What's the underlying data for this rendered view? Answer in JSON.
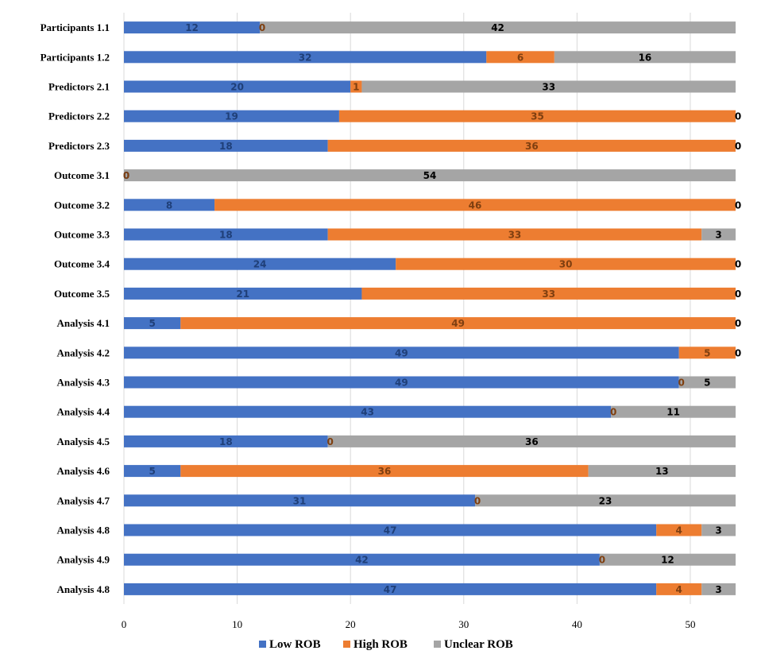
{
  "chart_data": {
    "type": "bar",
    "orientation": "horizontal",
    "stacked": true,
    "title": "",
    "xlabel": "",
    "ylabel": "",
    "xlim": [
      0,
      54
    ],
    "x_ticks": [
      0,
      10,
      20,
      30,
      40,
      50
    ],
    "grid": true,
    "legend_position": "bottom",
    "categories": [
      "Participants 1.1",
      "Participants 1.2",
      "Predictors 2.1",
      "Predictors 2.2",
      "Predictors 2.3",
      "Outcome 3.1",
      "Outcome 3.2",
      "Outcome 3.3",
      "Outcome 3.4",
      "Outcome 3.5",
      "Analysis 4.1",
      "Analysis 4.2",
      "Analysis 4.3",
      "Analysis 4.4",
      "Analysis 4.5",
      "Analysis 4.6",
      "Analysis 4.7",
      "Analysis 4.8",
      "Analysis 4.9",
      "Analysis 4.8"
    ],
    "series": [
      {
        "name": "Low ROB",
        "color": "#4472c4",
        "label_color": "#1f3f78",
        "values": [
          12,
          32,
          20,
          19,
          18,
          0,
          8,
          18,
          24,
          21,
          5,
          49,
          49,
          43,
          18,
          5,
          31,
          47,
          42,
          47
        ]
      },
      {
        "name": "High ROB",
        "color": "#ed7d31",
        "label_color": "#7f3f10",
        "values": [
          0,
          6,
          1,
          35,
          36,
          0,
          46,
          33,
          30,
          33,
          49,
          5,
          0,
          0,
          0,
          36,
          0,
          4,
          0,
          4
        ]
      },
      {
        "name": "Unclear ROB",
        "color": "#a5a5a5",
        "label_color": "#000000",
        "values": [
          42,
          16,
          33,
          0,
          0,
          54,
          0,
          3,
          0,
          0,
          0,
          0,
          5,
          11,
          36,
          13,
          23,
          3,
          12,
          3
        ]
      }
    ]
  }
}
